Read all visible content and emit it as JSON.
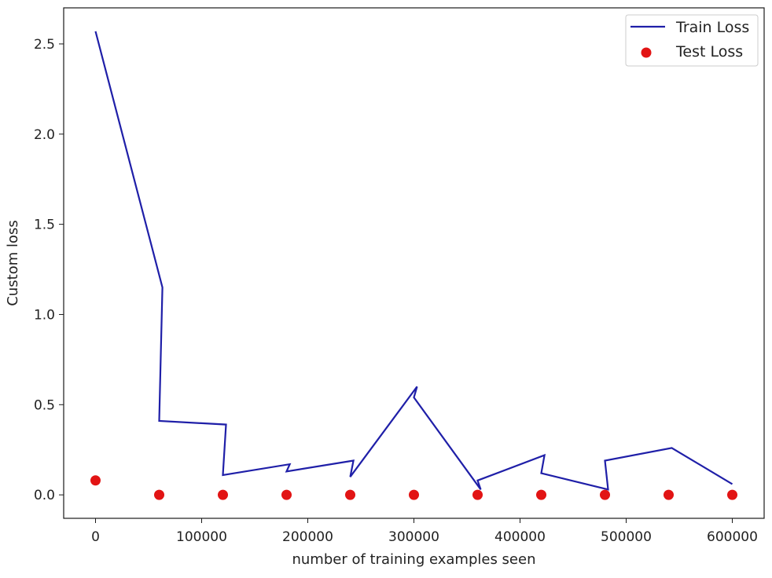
{
  "chart_data": {
    "type": "line",
    "title": "",
    "xlabel": "number of training examples seen",
    "ylabel": "Custom loss",
    "xlim": [
      -30000,
      630000
    ],
    "ylim": [
      -0.13,
      2.7
    ],
    "xticks": [
      0,
      100000,
      200000,
      300000,
      400000,
      500000,
      600000
    ],
    "xtick_labels": [
      "0",
      "100000",
      "200000",
      "300000",
      "400000",
      "500000",
      "600000"
    ],
    "yticks": [
      0.0,
      0.5,
      1.0,
      1.5,
      2.0,
      2.5
    ],
    "ytick_labels": [
      "0.0",
      "0.5",
      "1.0",
      "1.5",
      "2.0",
      "2.5"
    ],
    "grid": false,
    "legend_position": "top-right",
    "series": [
      {
        "name": "Train Loss",
        "kind": "line",
        "color": "#1f1fa8",
        "x": [
          0,
          63000,
          60000,
          123000,
          120000,
          183000,
          180000,
          243000,
          240000,
          303000,
          300000,
          363000,
          360000,
          423000,
          420000,
          483000,
          480000,
          543000,
          600000
        ],
        "y": [
          2.57,
          1.15,
          0.41,
          0.39,
          0.11,
          0.17,
          0.13,
          0.19,
          0.1,
          0.6,
          0.54,
          0.03,
          0.08,
          0.22,
          0.12,
          0.03,
          0.19,
          0.26,
          0.06
        ]
      },
      {
        "name": "Test Loss",
        "kind": "scatter",
        "color": "#e21414",
        "x": [
          0,
          60000,
          120000,
          180000,
          240000,
          300000,
          360000,
          420000,
          480000,
          540000,
          600000
        ],
        "y": [
          0.08,
          0.0,
          0.0,
          0.0,
          0.0,
          0.0,
          0.0,
          0.0,
          0.0,
          0.0,
          0.0
        ]
      }
    ]
  }
}
